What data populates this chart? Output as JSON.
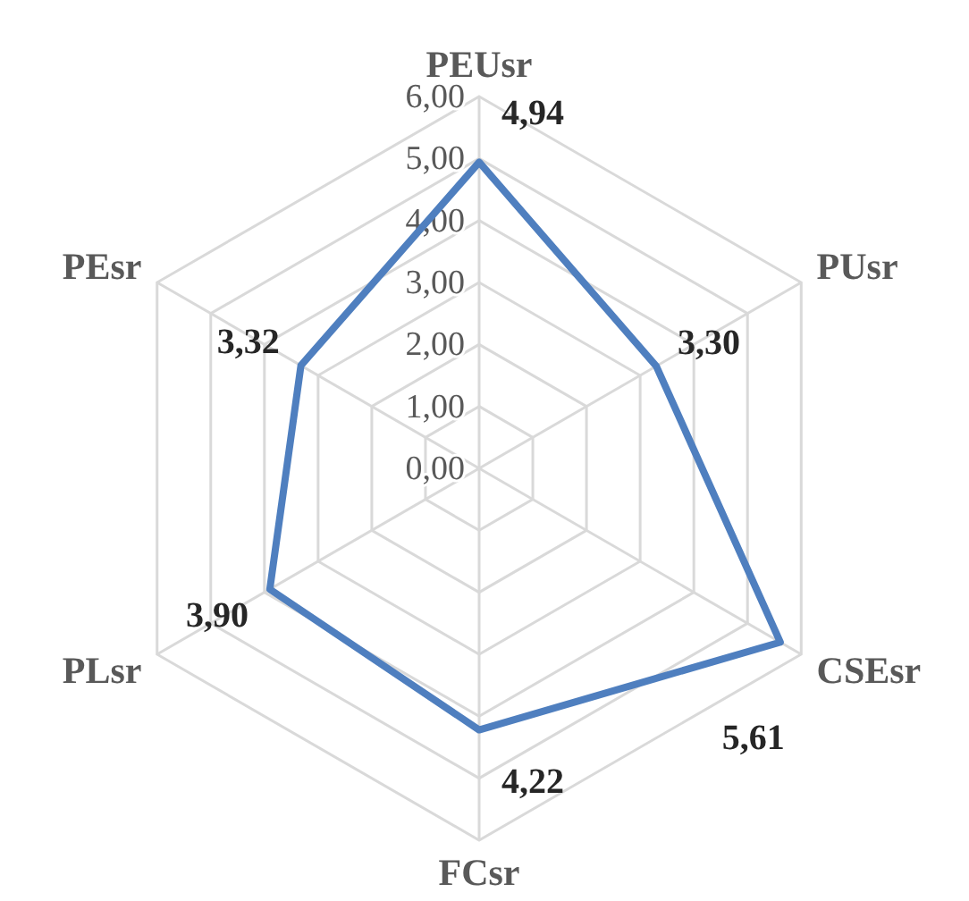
{
  "chart_data": {
    "type": "radar",
    "categories": [
      "PEUsr",
      "PUsr",
      "CSEsr",
      "FCsr",
      "PLsr",
      "PEsr"
    ],
    "series": [
      {
        "color": "#4f7fbf",
        "values": [
          4.94,
          3.3,
          5.61,
          4.22,
          3.9,
          3.32
        ],
        "value_labels": [
          "4,94",
          "3,30",
          "5,61",
          "4,22",
          "3,90",
          "3,32"
        ]
      }
    ],
    "ylim": [
      0,
      6
    ],
    "yticks": [
      {
        "value": 0,
        "label": "0,00"
      },
      {
        "value": 1,
        "label": "1,00"
      },
      {
        "value": 2,
        "label": "2,00"
      },
      {
        "value": 3,
        "label": "3,00"
      },
      {
        "value": 4,
        "label": "4,00"
      },
      {
        "value": 5,
        "label": "5,00"
      },
      {
        "value": 6,
        "label": "6,00"
      }
    ],
    "grid": true
  }
}
